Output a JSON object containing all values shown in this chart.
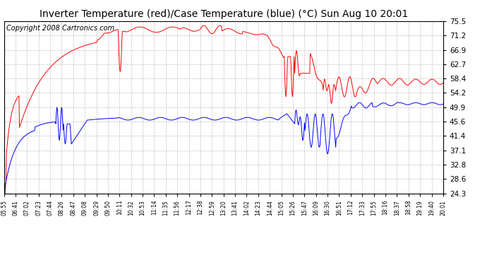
{
  "title": "Inverter Temperature (red)/Case Temperature (blue) (°C) Sun Aug 10 20:01",
  "copyright": "Copyright 2008 Cartronics.com",
  "yticks": [
    24.3,
    28.6,
    32.8,
    37.1,
    41.4,
    45.6,
    49.9,
    54.2,
    58.4,
    62.7,
    66.9,
    71.2,
    75.5
  ],
  "ylim": [
    24.3,
    75.5
  ],
  "xtick_labels": [
    "05:55",
    "06:41",
    "07:02",
    "07:23",
    "07:44",
    "08:26",
    "08:47",
    "09:08",
    "09:29",
    "09:50",
    "10:11",
    "10:32",
    "10:53",
    "11:14",
    "11:35",
    "11:56",
    "12:17",
    "12:38",
    "12:59",
    "13:20",
    "13:41",
    "14:02",
    "14:23",
    "14:44",
    "15:05",
    "15:26",
    "15:47",
    "16:09",
    "16:30",
    "16:51",
    "17:12",
    "17:33",
    "17:55",
    "18:16",
    "18:37",
    "18:58",
    "19:19",
    "19:40",
    "20:01"
  ],
  "bg_color": "#ffffff",
  "plot_bg_color": "#ffffff",
  "grid_color": "#c0c0c0",
  "red_color": "#ff0000",
  "blue_color": "#0000ff",
  "title_fontsize": 10,
  "copyright_fontsize": 7
}
